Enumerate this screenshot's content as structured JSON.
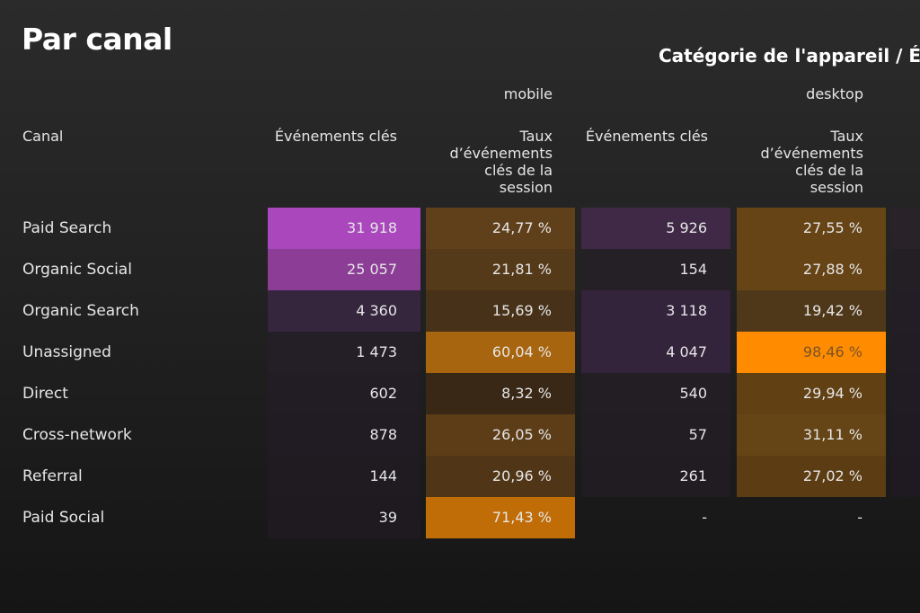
{
  "title": "Par canal",
  "header": {
    "dimension": "Catégorie de l'appareil / É",
    "devices": [
      "mobile",
      "desktop"
    ],
    "row_header": "Canal",
    "columns": [
      "Événements clés",
      "Taux d’événements clés de la session",
      "Événements clés",
      "Taux d’événements clés de la session"
    ]
  },
  "rows": [
    {
      "channel": "Paid Search",
      "values": [
        "31 918",
        "24,77 %",
        "5 926",
        "27,55 %"
      ],
      "colors": [
        "#ab47bc",
        "#5f401b",
        "#3f2946",
        "#664416",
        "#2a2229"
      ]
    },
    {
      "channel": "Organic Social",
      "values": [
        "25 057",
        "21,81 %",
        "154",
        "27,88 %"
      ],
      "colors": [
        "#8c3d96",
        "#553a1a",
        "#242025",
        "#664416",
        "#231f24"
      ]
    },
    {
      "channel": "Organic Search",
      "values": [
        "4 360",
        "15,69 %",
        "3 118",
        "19,42 %"
      ],
      "colors": [
        "#35253d",
        "#473219",
        "#33233b",
        "#4f3819",
        "#231e25"
      ]
    },
    {
      "channel": "Unassigned",
      "values": [
        "1 473",
        "60,04 %",
        "4 047",
        "98,46 %"
      ],
      "colors": [
        "#241e26",
        "#a8650f",
        "#33233b",
        "#ff8c00",
        "#221d24"
      ]
    },
    {
      "channel": "Direct",
      "values": [
        "602",
        "8,32 %",
        "540",
        "29,94 %"
      ],
      "colors": [
        "#221d24",
        "#382815",
        "#221e24",
        "#614014",
        "#211c23"
      ]
    },
    {
      "channel": "Cross-network",
      "values": [
        "878",
        "26,05 %",
        "57",
        "31,11 %"
      ],
      "colors": [
        "#211c23",
        "#5c3d18",
        "#211d23",
        "#654415",
        "#201b22"
      ]
    },
    {
      "channel": "Referral",
      "values": [
        "144",
        "20,96 %",
        "261",
        "27,02 %"
      ],
      "colors": [
        "#1f1b21",
        "#503616",
        "#201c22",
        "#5c3d13",
        "#1f1a21"
      ]
    },
    {
      "channel": "Paid Social",
      "values": [
        "39",
        "71,43 %",
        "-",
        "-"
      ],
      "colors": [
        "#1e1a20",
        "#c06d08",
        "transparent",
        "transparent",
        "transparent"
      ]
    }
  ]
}
